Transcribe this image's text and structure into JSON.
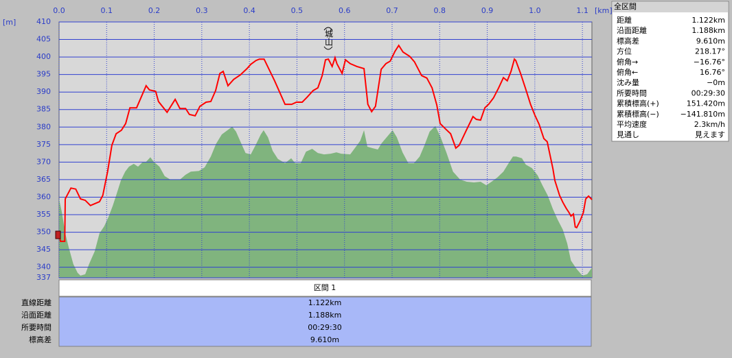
{
  "chart_data": {
    "type": "line",
    "xlabel": "[km]",
    "ylabel": "[m]",
    "annotation": "城山",
    "xlim": [
      0,
      1.12
    ],
    "ylim": [
      337,
      410
    ],
    "xticks": [
      {
        "value": 0,
        "label": "0.0"
      },
      0.1,
      0.2,
      0.3,
      0.4,
      0.5,
      0.6,
      0.7,
      0.8,
      0.9,
      {
        "value": 1,
        "label": "1.0"
      },
      1.1
    ],
    "yticks": [
      337,
      340,
      345,
      350,
      355,
      360,
      365,
      370,
      375,
      380,
      385,
      390,
      395,
      400,
      405,
      410
    ],
    "grid": true,
    "series": [
      {
        "style": "area",
        "color": "#80b47e",
        "x": [
          0,
          0.006,
          0.013,
          0.02,
          0.03,
          0.039,
          0.045,
          0.055,
          0.063,
          0.075,
          0.085,
          0.095,
          0.104,
          0.113,
          0.121,
          0.13,
          0.139,
          0.147,
          0.157,
          0.166,
          0.175,
          0.183,
          0.192,
          0.199,
          0.211,
          0.222,
          0.234,
          0.254,
          0.266,
          0.277,
          0.294,
          0.306,
          0.319,
          0.33,
          0.342,
          0.354,
          0.364,
          0.372,
          0.382,
          0.392,
          0.403,
          0.413,
          0.424,
          0.43,
          0.439,
          0.449,
          0.46,
          0.475,
          0.488,
          0.496,
          0.508,
          0.519,
          0.532,
          0.544,
          0.557,
          0.571,
          0.583,
          0.593,
          0.612,
          0.623,
          0.633,
          0.641,
          0.648,
          0.658,
          0.67,
          0.678,
          0.691,
          0.701,
          0.71,
          0.722,
          0.734,
          0.746,
          0.758,
          0.768,
          0.779,
          0.791,
          0.802,
          0.814,
          0.828,
          0.843,
          0.857,
          0.872,
          0.886,
          0.898,
          0.909,
          0.921,
          0.934,
          0.944,
          0.954,
          0.961,
          0.973,
          0.981,
          0.994,
          1.006,
          1.016,
          1.027,
          1.038,
          1.048,
          1.059,
          1.068,
          1.076,
          1.088,
          1.1,
          1.11,
          1.12
        ],
        "values": [
          359.5,
          355.6,
          349.7,
          345.8,
          340.9,
          338.4,
          337.6,
          338.0,
          340.9,
          344.6,
          349.7,
          351.7,
          354.4,
          357.6,
          360.9,
          364.8,
          367.3,
          368.7,
          369.5,
          368.7,
          369.9,
          370.1,
          371.4,
          370.1,
          368.7,
          366.0,
          365.0,
          365.0,
          366.4,
          367.3,
          367.5,
          368.5,
          371.6,
          375.2,
          377.9,
          379.1,
          380.1,
          378.7,
          375.6,
          372.6,
          372.2,
          374.8,
          377.9,
          379.1,
          377.1,
          373.2,
          370.9,
          369.7,
          371.1,
          369.7,
          369.7,
          373.0,
          373.8,
          372.6,
          372.2,
          372.4,
          372.8,
          372.4,
          372.2,
          374.2,
          376.1,
          379.1,
          374.4,
          374.0,
          373.6,
          375.4,
          377.5,
          379.1,
          377.1,
          372.8,
          369.7,
          369.7,
          371.6,
          374.8,
          378.7,
          380.3,
          377.1,
          372.8,
          367.3,
          365.0,
          364.4,
          364.2,
          364.4,
          363.4,
          364.4,
          365.6,
          367.3,
          369.5,
          371.6,
          371.6,
          371.1,
          369.3,
          368.3,
          366.2,
          363.4,
          360.5,
          356.6,
          353.6,
          350.7,
          346.8,
          341.9,
          339.5,
          337.6,
          338.0,
          339.9
        ]
      },
      {
        "style": "line",
        "color": "#ff0000",
        "x": [
          0,
          0.003,
          0.012,
          0.013,
          0.025,
          0.035,
          0.045,
          0.055,
          0.066,
          0.085,
          0.092,
          0.102,
          0.111,
          0.12,
          0.131,
          0.14,
          0.149,
          0.163,
          0.183,
          0.19,
          0.203,
          0.209,
          0.227,
          0.244,
          0.254,
          0.266,
          0.274,
          0.286,
          0.296,
          0.309,
          0.319,
          0.329,
          0.338,
          0.345,
          0.355,
          0.367,
          0.381,
          0.395,
          0.403,
          0.414,
          0.421,
          0.431,
          0.453,
          0.475,
          0.489,
          0.499,
          0.511,
          0.521,
          0.534,
          0.544,
          0.553,
          0.56,
          0.566,
          0.574,
          0.58,
          0.584,
          0.595,
          0.602,
          0.612,
          0.626,
          0.641,
          0.649,
          0.657,
          0.665,
          0.677,
          0.687,
          0.696,
          0.706,
          0.714,
          0.723,
          0.737,
          0.747,
          0.762,
          0.773,
          0.784,
          0.794,
          0.801,
          0.812,
          0.823,
          0.834,
          0.841,
          0.856,
          0.87,
          0.877,
          0.886,
          0.895,
          0.903,
          0.913,
          0.924,
          0.934,
          0.942,
          0.95,
          0.957,
          0.96,
          0.97,
          0.98,
          0.991,
          1.0,
          1.009,
          1.019,
          1.026,
          1.038,
          1.042,
          1.052,
          1.059,
          1.066,
          1.072,
          1.076,
          1.081,
          1.085,
          1.088,
          1.095,
          1.102,
          1.107,
          1.113,
          1.12
        ],
        "values": [
          349.7,
          347.4,
          347.4,
          359.5,
          362.6,
          362.3,
          359.5,
          359.1,
          357.6,
          358.7,
          360.5,
          367.3,
          374.8,
          378.1,
          379.1,
          381.0,
          385.5,
          385.5,
          391.8,
          390.6,
          390.2,
          387.3,
          384.2,
          387.9,
          385.3,
          385.3,
          383.6,
          383.2,
          385.9,
          387.1,
          387.3,
          390.4,
          395.3,
          395.9,
          391.8,
          393.6,
          394.9,
          396.7,
          397.9,
          399.0,
          399.4,
          399.4,
          393.2,
          386.5,
          386.5,
          387.1,
          387.1,
          388.5,
          390.4,
          391.2,
          394.7,
          399.2,
          399.4,
          397.3,
          399.8,
          398.1,
          395.3,
          399.2,
          398.1,
          397.3,
          396.7,
          386.5,
          384.4,
          385.9,
          396.5,
          398.1,
          398.8,
          401.6,
          403.3,
          401.4,
          400.2,
          398.6,
          394.7,
          394.0,
          391.2,
          386.3,
          381.0,
          379.5,
          378.1,
          374.0,
          374.8,
          379.1,
          383.0,
          382.2,
          382.0,
          385.5,
          386.5,
          388.3,
          391.2,
          394.1,
          393.2,
          395.9,
          399.4,
          399.0,
          395.3,
          391.2,
          386.5,
          383.4,
          380.8,
          376.7,
          375.8,
          368.1,
          364.8,
          360.5,
          358.5,
          356.8,
          355.6,
          354.6,
          355.2,
          351.5,
          351.3,
          353.2,
          355.6,
          359.5,
          360.3,
          359.3
        ]
      }
    ]
  },
  "info_panel": {
    "title": "全区間",
    "rows": [
      [
        "距離",
        "1.122km"
      ],
      [
        "沿面距離",
        "1.188km"
      ],
      [
        "標高差",
        "9.610m"
      ],
      [
        "方位",
        "218.17°"
      ],
      [
        "俯角→",
        "−16.76°"
      ],
      [
        "俯角←",
        "16.76°"
      ],
      [
        "沈み量",
        "−0m"
      ],
      [
        "所要時間",
        "00:29:30"
      ],
      [
        "累積標高(+)",
        "151.420m"
      ],
      [
        "累積標高(−)",
        "−141.810m"
      ],
      [
        "平均速度",
        "2.3km/h"
      ],
      [
        "見通し",
        "見えます"
      ]
    ]
  },
  "segment_table": {
    "header": "区間 1",
    "rows": [
      [
        "直線距離",
        "1.122km"
      ],
      [
        "沿面距離",
        "1.188km"
      ],
      [
        "所要時間",
        "00:29:30"
      ],
      [
        "標高差",
        "9.610m"
      ]
    ]
  }
}
